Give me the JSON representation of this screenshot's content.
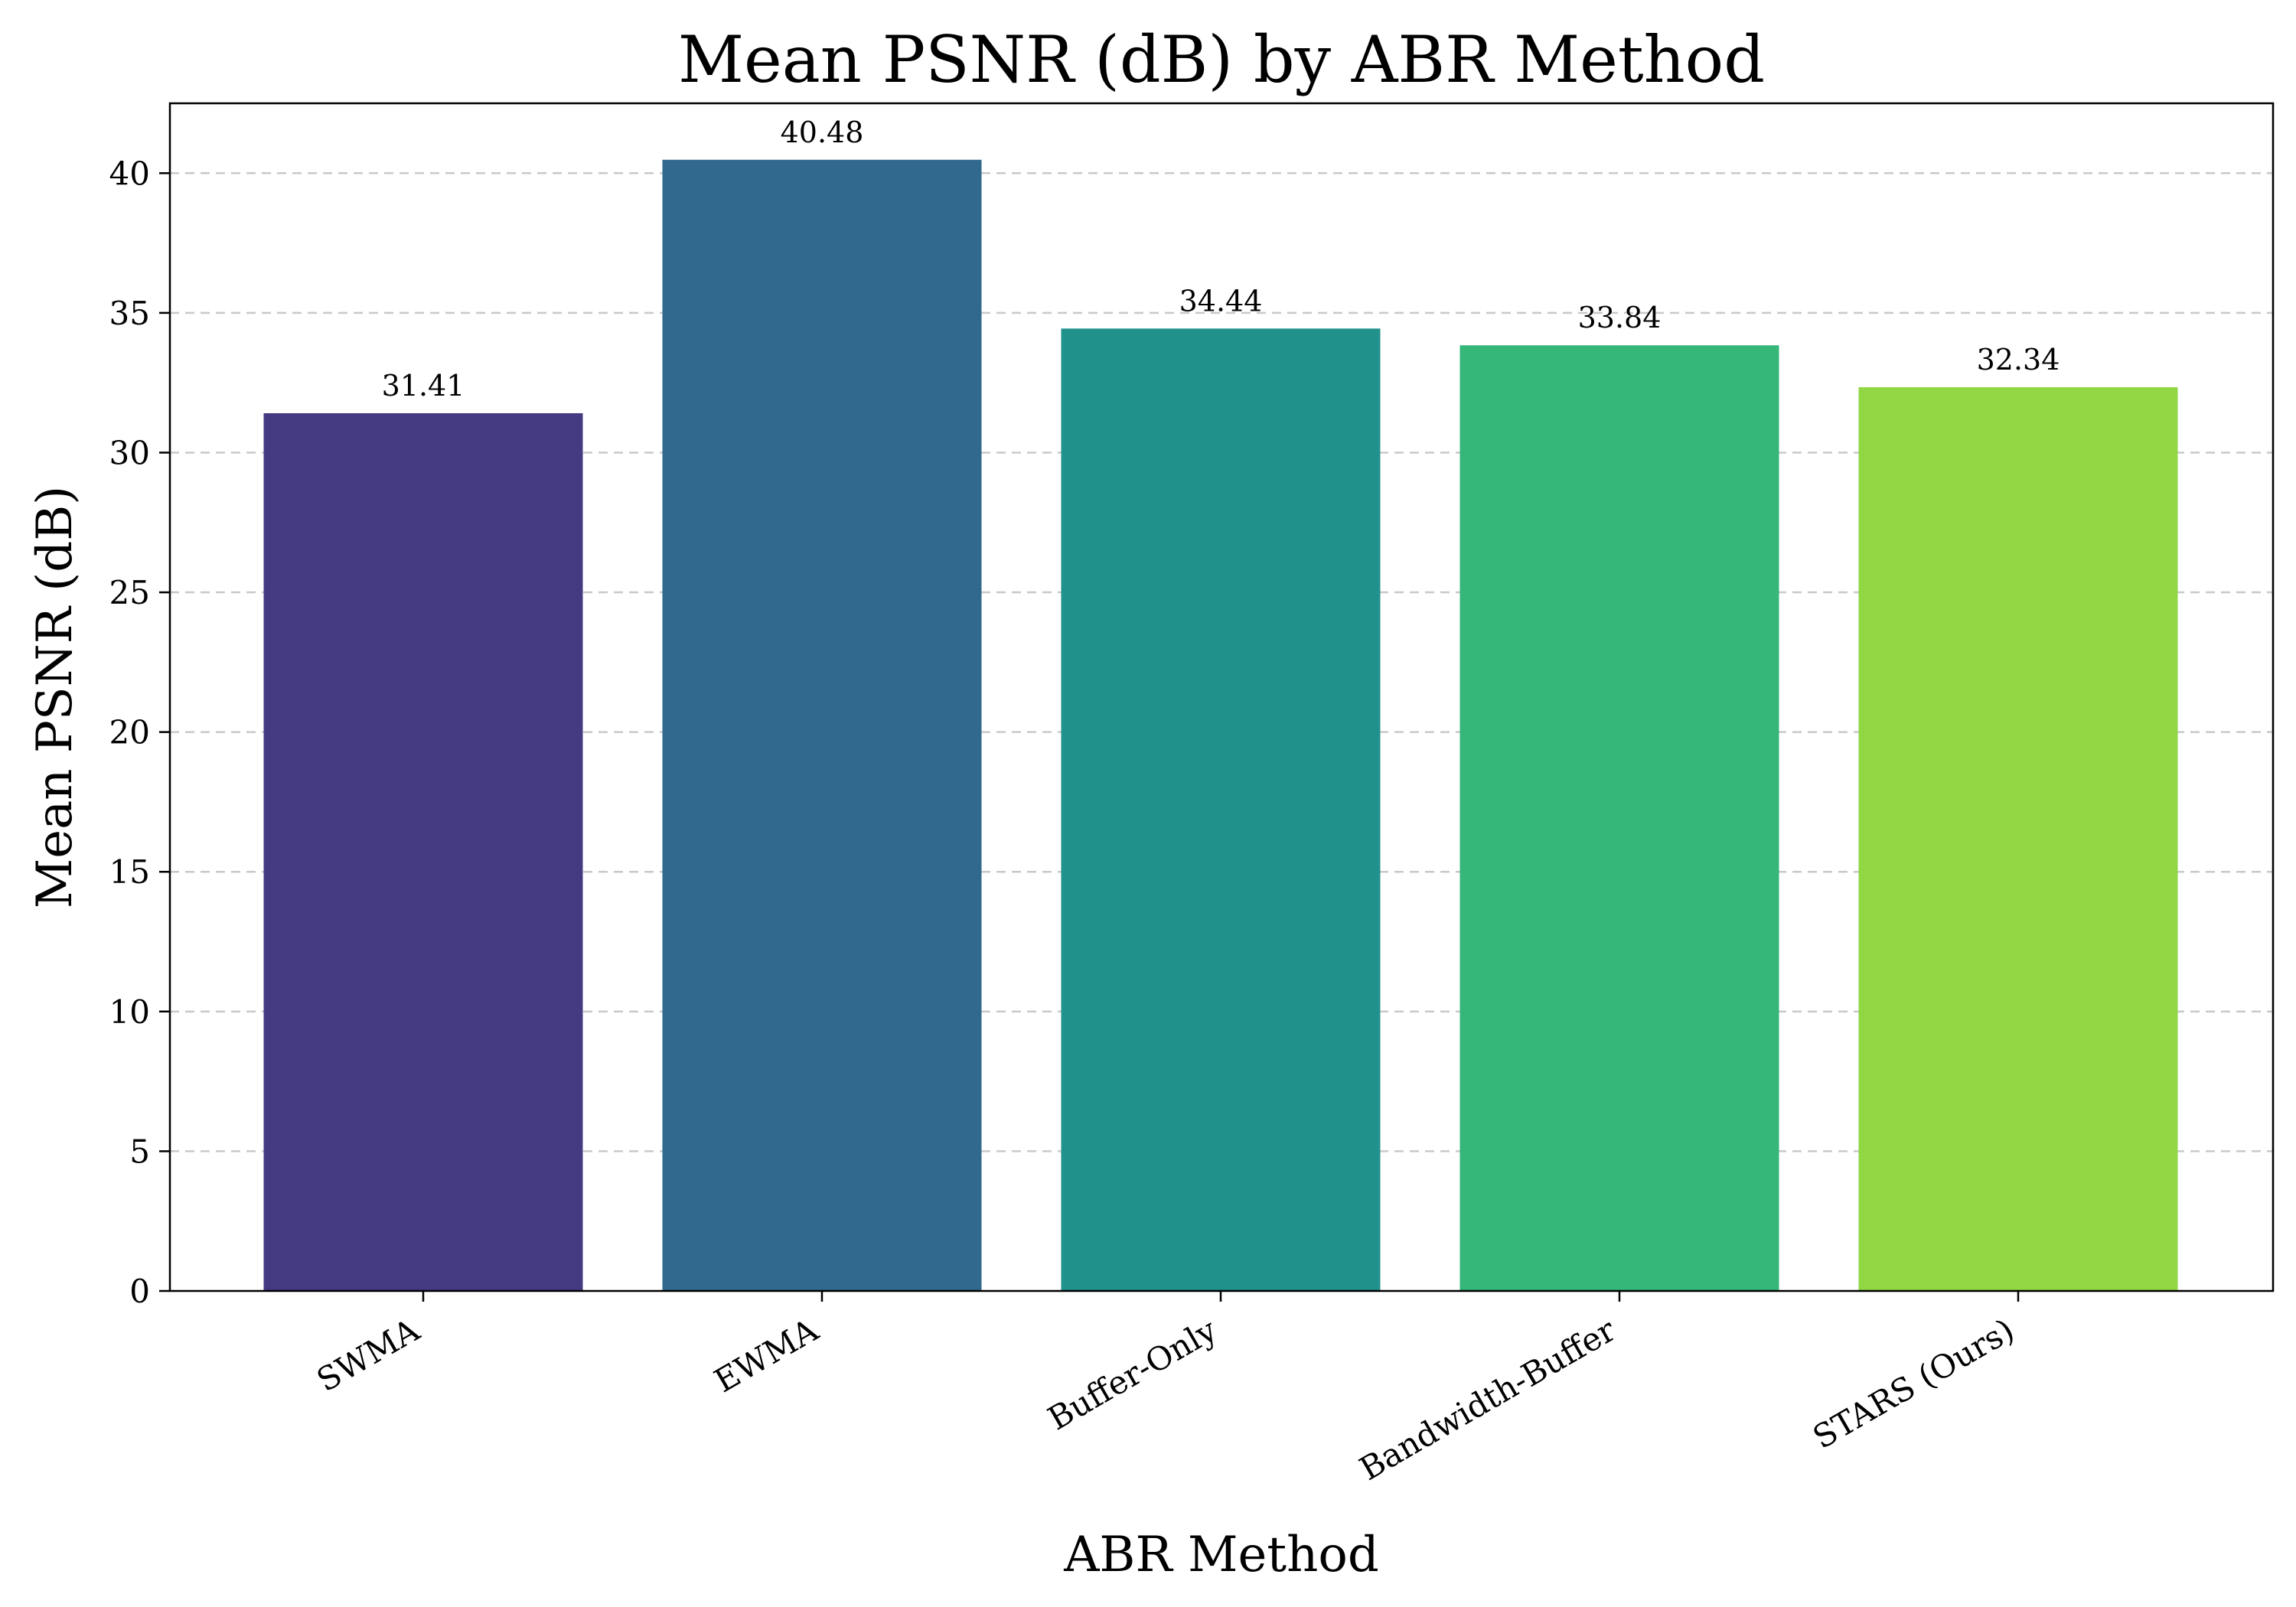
{
  "chart_data": {
    "type": "bar",
    "title": "Mean PSNR (dB) by ABR Method",
    "xlabel": "ABR Method",
    "ylabel": "Mean PSNR (dB)",
    "categories": [
      "SWMA",
      "EWMA",
      "Buffer-Only",
      "Bandwidth-Buffer",
      "STARS (Ours)"
    ],
    "values": [
      31.41,
      40.48,
      34.44,
      33.84,
      32.34
    ],
    "value_labels": [
      "31.41",
      "40.48",
      "34.44",
      "33.84",
      "32.34"
    ],
    "colors": [
      "#443a82",
      "#31688e",
      "#21918c",
      "#35b779",
      "#90d743"
    ],
    "ylim": [
      0,
      42.5
    ],
    "yticks": [
      0,
      5,
      10,
      15,
      20,
      25,
      30,
      35,
      40
    ],
    "grid": "horizontal dashed",
    "x_tick_rotation": "30 degrees"
  }
}
